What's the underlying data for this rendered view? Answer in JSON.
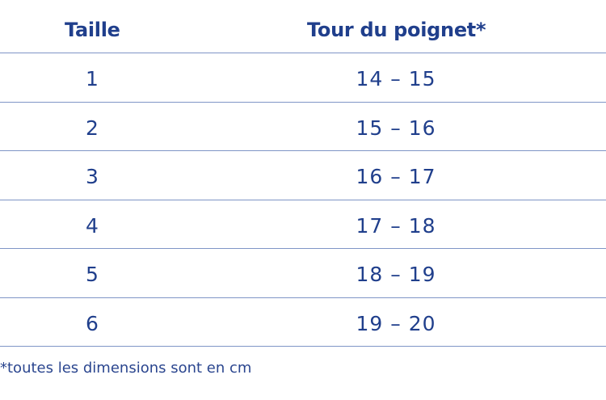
{
  "table": {
    "headers": {
      "size": "Taille",
      "wrist": "Tour du poignet*"
    },
    "rows": [
      {
        "size": "1",
        "wrist": "14 – 15"
      },
      {
        "size": "2",
        "wrist": "15 – 16"
      },
      {
        "size": "3",
        "wrist": "16 – 17"
      },
      {
        "size": "4",
        "wrist": "17 – 18"
      },
      {
        "size": "5",
        "wrist": "18 – 19"
      },
      {
        "size": "6",
        "wrist": "19 – 20"
      }
    ]
  },
  "footnote": "*toutes les dimensions sont en cm",
  "colors": {
    "text": "#203f8c",
    "divider": "#7f95c6"
  }
}
